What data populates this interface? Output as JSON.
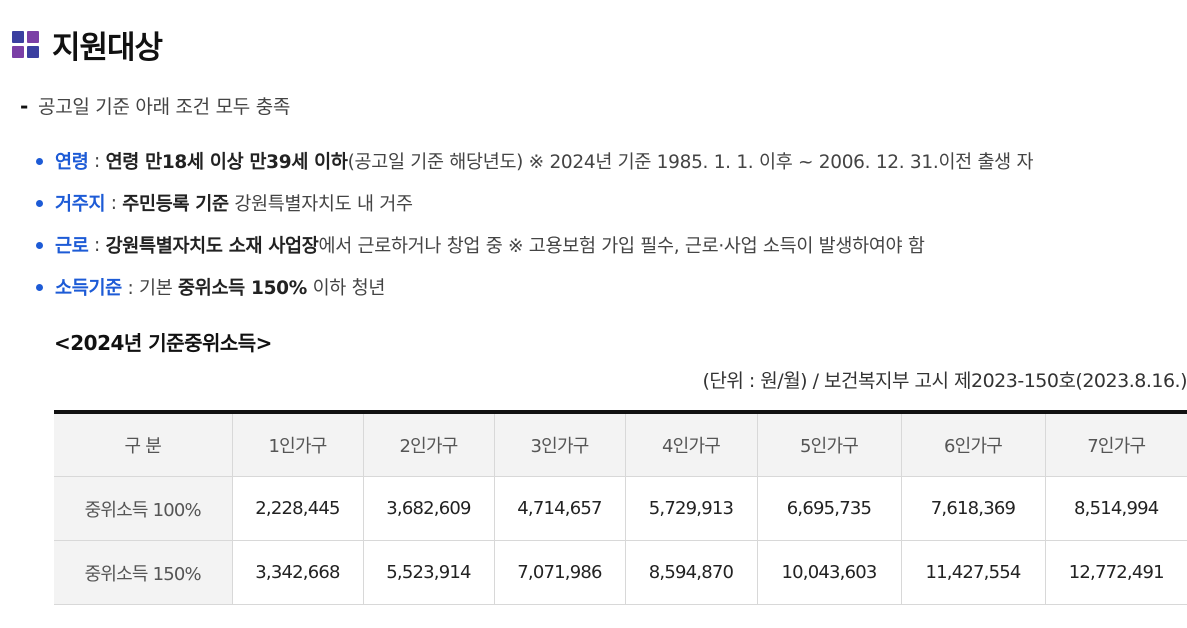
{
  "section": {
    "title": "지원대상",
    "icon": {
      "name": "grid-icon",
      "colors": [
        "#3b3fa0",
        "#7b3fa6",
        "#7b3fa6",
        "#3b3fa0"
      ]
    }
  },
  "intro": {
    "dash": "-",
    "text": "공고일 기준 아래 조건 모두 충족"
  },
  "criteria": [
    {
      "key": "연령",
      "sep": " : ",
      "bold": "연령 만18세 이상 만39세 이하",
      "rest": "(공고일 기준 해당년도) ※ 2024년 기준 1985. 1. 1. 이후 ~ 2006. 12. 31.이전 출생 자"
    },
    {
      "key": "거주지",
      "sep": " : ",
      "bold": "주민등록 기준",
      "rest": " 강원특별자치도 내 거주"
    },
    {
      "key": "근로",
      "sep": " : ",
      "bold": "강원특별자치도 소재 사업장",
      "rest": "에서 근로하거나 창업 중 ※ 고용보험 가입 필수, 근로·사업 소득이 발생하여야 함"
    },
    {
      "key": "소득기준",
      "sep": " : 기본 ",
      "bold": "중위소득 150%",
      "rest": " 이하 청년"
    }
  ],
  "table_section": {
    "title": "<2024년 기준중위소득>",
    "unit_note": "(단위 : 원/월) / 보건복지부 고시 제2023-150호(2023.8.16.)"
  },
  "income_table": {
    "headers": [
      "구 분",
      "1인가구",
      "2인가구",
      "3인가구",
      "4인가구",
      "5인가구",
      "6인가구",
      "7인가구"
    ],
    "rows": [
      [
        "중위소득 100%",
        "2,228,445",
        "3,682,609",
        "4,714,657",
        "5,729,913",
        "6,695,735",
        "7,618,369",
        "8,514,994"
      ],
      [
        "중위소득 150%",
        "3,342,668",
        "5,523,914",
        "7,071,986",
        "8,594,870",
        "10,043,603",
        "11,427,554",
        "12,772,491"
      ]
    ]
  },
  "colors": {
    "accent_blue": "#1d5bd6",
    "table_border_top": "#111111",
    "header_bg": "#f3f3f3"
  }
}
